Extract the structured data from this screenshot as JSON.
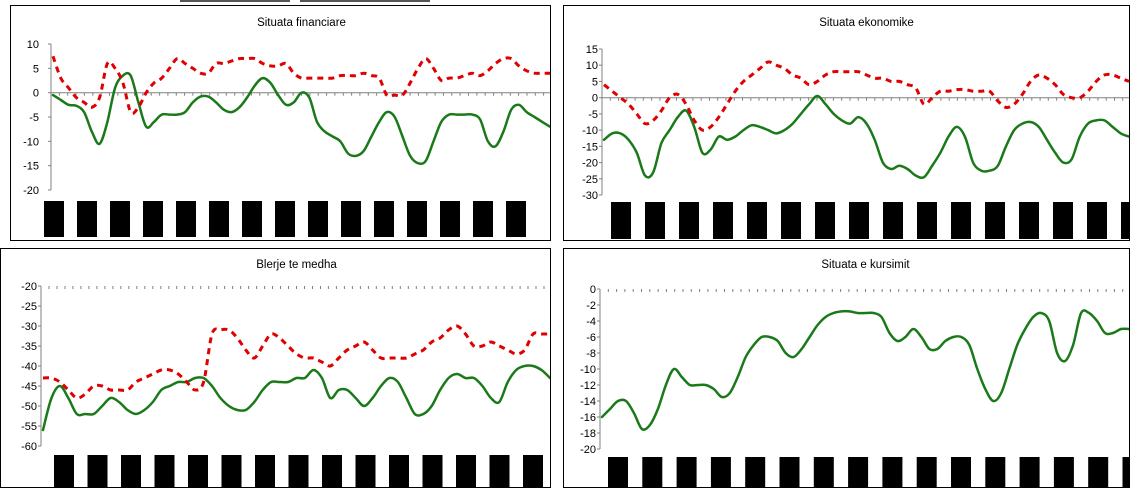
{
  "colors": {
    "series_main": "#1a7a1a",
    "series_dashed": "#e00000",
    "axis": "#808080",
    "bar": "#000000"
  },
  "chart_data": [
    {
      "type": "line",
      "title": "Situata financiare",
      "ylim": [
        -20,
        10
      ],
      "yticks": [
        10,
        5,
        0,
        -5,
        -10,
        -15,
        -20
      ],
      "grid": false,
      "n_category_blocks": 15,
      "series": [
        {
          "style": "solid-green",
          "values": [
            -0.5,
            -1.5,
            -2.5,
            -2.7,
            -4,
            -8,
            -10.5,
            -6,
            1,
            3.5,
            3.5,
            -2,
            -7,
            -6,
            -4.5,
            -4.5,
            -4.5,
            -4,
            -2,
            -0.8,
            -0.8,
            -2,
            -3.5,
            -4,
            -3,
            -1,
            1.5,
            3,
            2,
            -0.5,
            -2.5,
            -2,
            0,
            -1,
            -6,
            -8,
            -9,
            -10,
            -12.5,
            -13,
            -12,
            -9,
            -6,
            -4,
            -5,
            -9,
            -13,
            -14.5,
            -14,
            -10,
            -6,
            -4.5,
            -4.5,
            -4.5,
            -4.5,
            -5.5,
            -10,
            -11,
            -8,
            -3.5,
            -2.5,
            -4,
            -5,
            -6,
            -7
          ]
        },
        {
          "style": "dashed-red",
          "values": [
            7.5,
            3,
            1,
            -1,
            -2,
            -3,
            -1,
            6,
            5,
            2,
            -4,
            -3,
            0,
            2,
            3,
            5,
            7,
            6,
            5,
            4,
            4,
            6,
            6,
            6.5,
            7,
            7,
            7,
            6,
            5.5,
            5.5,
            6,
            4,
            3,
            3,
            3,
            3,
            3,
            3.5,
            3.5,
            3.5,
            4,
            3.5,
            3,
            -0.5,
            -0.5,
            -0.5,
            2,
            5,
            7,
            5,
            2.5,
            3,
            3,
            3.5,
            4,
            3.5,
            4.5,
            6,
            7,
            7,
            5.5,
            4.5,
            4,
            4,
            4
          ]
        }
      ]
    },
    {
      "type": "line",
      "title": "Situata ekonomike",
      "ylim": [
        -30,
        15
      ],
      "yticks": [
        15,
        10,
        5,
        0,
        -5,
        -10,
        -15,
        -20,
        -25,
        -30
      ],
      "grid": false,
      "n_category_blocks": 16,
      "series": [
        {
          "style": "solid-green",
          "values": [
            -13,
            -11,
            -11,
            -13,
            -17,
            -24,
            -23,
            -14,
            -10,
            -6,
            -4,
            -9,
            -17,
            -16,
            -12,
            -13,
            -12,
            -10,
            -8.5,
            -9,
            -10,
            -11,
            -10,
            -8,
            -5,
            -2,
            0.5,
            -2,
            -5,
            -7,
            -8,
            -6,
            -8,
            -13,
            -20,
            -22,
            -21,
            -22,
            -24,
            -24.5,
            -21,
            -17,
            -12,
            -9,
            -12,
            -20,
            -22.5,
            -22.5,
            -21,
            -15,
            -10,
            -8,
            -7.5,
            -9,
            -13,
            -17,
            -20,
            -19,
            -12,
            -8,
            -7,
            -7,
            -9,
            -11,
            -12
          ]
        },
        {
          "style": "dashed-red",
          "values": [
            4,
            2,
            0,
            -2,
            -5,
            -8,
            -7,
            -4,
            0,
            1,
            -2,
            -7,
            -10,
            -9,
            -6,
            -2,
            2,
            5,
            7,
            9,
            11,
            10,
            9,
            7,
            6,
            4,
            5,
            7,
            8,
            8,
            8,
            8,
            7,
            6,
            6,
            5,
            5,
            4,
            3,
            -2,
            0,
            2,
            2,
            2.5,
            2.5,
            2,
            2,
            2,
            -1,
            -3,
            -2,
            1,
            5,
            7,
            6,
            4,
            1,
            0,
            0,
            2,
            5,
            7,
            7,
            6,
            5
          ]
        }
      ]
    },
    {
      "type": "line",
      "title": "Blerje te medha",
      "ylim": [
        -60,
        -20
      ],
      "yticks": [
        -20,
        -25,
        -30,
        -35,
        -40,
        -45,
        -50,
        -55,
        -60
      ],
      "grid": false,
      "n_category_blocks": 16,
      "series": [
        {
          "style": "solid-green",
          "values": [
            -56,
            -48,
            -45,
            -48,
            -52,
            -52,
            -52,
            -50,
            -48,
            -49,
            -51,
            -52,
            -51,
            -49,
            -46,
            -45,
            -44,
            -44,
            -43,
            -43,
            -45,
            -48,
            -50,
            -51,
            -51,
            -49,
            -46,
            -44,
            -44,
            -44,
            -43,
            -43,
            -41,
            -43,
            -48,
            -46,
            -46,
            -48,
            -50,
            -48,
            -45,
            -43,
            -44,
            -48,
            -52,
            -52,
            -50,
            -46,
            -43,
            -42,
            -43,
            -43,
            -45,
            -48,
            -49,
            -44,
            -41,
            -40,
            -40,
            -41,
            -43
          ]
        },
        {
          "style": "dashed-red",
          "values": [
            -43,
            -43,
            -44,
            -46,
            -48,
            -47,
            -45,
            -45,
            -46,
            -46,
            -46,
            -44,
            -43,
            -42,
            -41,
            -41,
            -42,
            -44,
            -46,
            -44,
            -32,
            -31,
            -31,
            -33,
            -36,
            -38,
            -35,
            -32,
            -33,
            -35,
            -37,
            -38,
            -38,
            -39,
            -40,
            -38,
            -36,
            -35,
            -34,
            -36,
            -38,
            -38,
            -38,
            -38,
            -37,
            -36,
            -34,
            -33,
            -31,
            -30,
            -32,
            -35,
            -35,
            -34,
            -35,
            -36,
            -37,
            -36,
            -32,
            -32,
            -32
          ]
        }
      ]
    },
    {
      "type": "line",
      "title": "Situata e kursimit",
      "ylim": [
        -20,
        0
      ],
      "yticks": [
        0,
        -2,
        -4,
        -6,
        -8,
        -10,
        -12,
        -14,
        -16,
        -18,
        -20
      ],
      "grid": false,
      "n_category_blocks": 16,
      "series": [
        {
          "style": "solid-green",
          "values": [
            -16,
            -15,
            -14,
            -14,
            -15.5,
            -17.5,
            -17,
            -15,
            -12,
            -10,
            -11,
            -12,
            -12,
            -12,
            -12.5,
            -13.5,
            -13,
            -11,
            -8.5,
            -7,
            -6,
            -6,
            -6.5,
            -8,
            -8.5,
            -7.5,
            -6,
            -4.5,
            -3.5,
            -3,
            -2.8,
            -2.8,
            -3,
            -3,
            -3,
            -3.5,
            -5.5,
            -6.5,
            -6,
            -5,
            -6,
            -7.5,
            -7.5,
            -6.5,
            -6,
            -6,
            -7,
            -10,
            -12.5,
            -14,
            -13,
            -10,
            -7,
            -5,
            -3.5,
            -3,
            -4,
            -8,
            -9,
            -7,
            -3,
            -3,
            -4,
            -5.5,
            -5.5,
            -5,
            -5
          ]
        }
      ]
    }
  ]
}
